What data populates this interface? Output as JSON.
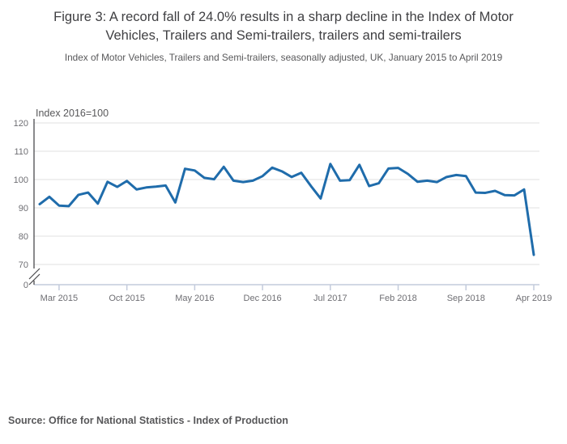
{
  "header": {
    "title": "Figure 3: A record fall of 24.0% results in a sharp decline in the Index of Motor Vehicles, Trailers and Semi-trailers, trailers and semi-trailers",
    "subtitle": "Index of Motor Vehicles, Trailers and Semi-trailers, seasonally adjusted, UK, January 2015 to April 2019"
  },
  "chart_data": {
    "type": "line",
    "axis_title": "Index 2016=100",
    "months": [
      "Jan 2015",
      "Feb 2015",
      "Mar 2015",
      "Apr 2015",
      "May 2015",
      "Jun 2015",
      "Jul 2015",
      "Aug 2015",
      "Sep 2015",
      "Oct 2015",
      "Nov 2015",
      "Dec 2015",
      "Jan 2016",
      "Feb 2016",
      "Mar 2016",
      "Apr 2016",
      "May 2016",
      "Jun 2016",
      "Jul 2016",
      "Aug 2016",
      "Sep 2016",
      "Oct 2016",
      "Nov 2016",
      "Dec 2016",
      "Jan 2017",
      "Feb 2017",
      "Mar 2017",
      "Apr 2017",
      "May 2017",
      "Jun 2017",
      "Jul 2017",
      "Aug 2017",
      "Sep 2017",
      "Oct 2017",
      "Nov 2017",
      "Dec 2017",
      "Jan 2018",
      "Feb 2018",
      "Mar 2018",
      "Apr 2018",
      "May 2018",
      "Jun 2018",
      "Jul 2018",
      "Aug 2018",
      "Sep 2018",
      "Oct 2018",
      "Nov 2018",
      "Dec 2018",
      "Jan 2019",
      "Feb 2019",
      "Mar 2019",
      "Apr 2019"
    ],
    "values": [
      91.3,
      93.9,
      90.8,
      90.6,
      94.6,
      95.4,
      91.5,
      99.2,
      97.4,
      99.5,
      96.5,
      97.2,
      97.5,
      97.9,
      91.9,
      103.8,
      103.2,
      100.6,
      100.1,
      104.5,
      99.6,
      99.1,
      99.6,
      101.2,
      104.2,
      102.9,
      100.9,
      102.4,
      97.7,
      93.3,
      105.5,
      99.6,
      99.8,
      105.2,
      97.7,
      98.7,
      103.9,
      104.1,
      102.0,
      99.2,
      99.6,
      99.1,
      100.9,
      101.6,
      101.2,
      95.4,
      95.3,
      96.0,
      94.5,
      94.4,
      96.5,
      73.4
    ],
    "x_tick_labels": [
      "Mar 2015",
      "Oct 2015",
      "May 2016",
      "Dec 2016",
      "Jul 2017",
      "Feb 2018",
      "Sep 2018",
      "Apr 2019"
    ],
    "x_tick_month_indices": [
      2,
      9,
      16,
      23,
      30,
      37,
      44,
      51
    ],
    "y_ticks": [
      120,
      110,
      100,
      90,
      80,
      70
    ],
    "y_baseline_label": "0",
    "axis_break": true,
    "ylim_display": [
      70,
      120
    ],
    "grid": true,
    "legend": "none",
    "line_color": "#1f6cab",
    "grid_color": "#e2e2e2",
    "y_axis_color": "#4a4a4d",
    "x_axis_color": "#c3cbdc",
    "tick_label_color": "#6e6e73",
    "axis_title_color": "#58585a"
  },
  "footer": {
    "source": "Source: Office for National Statistics - Index of Production"
  }
}
